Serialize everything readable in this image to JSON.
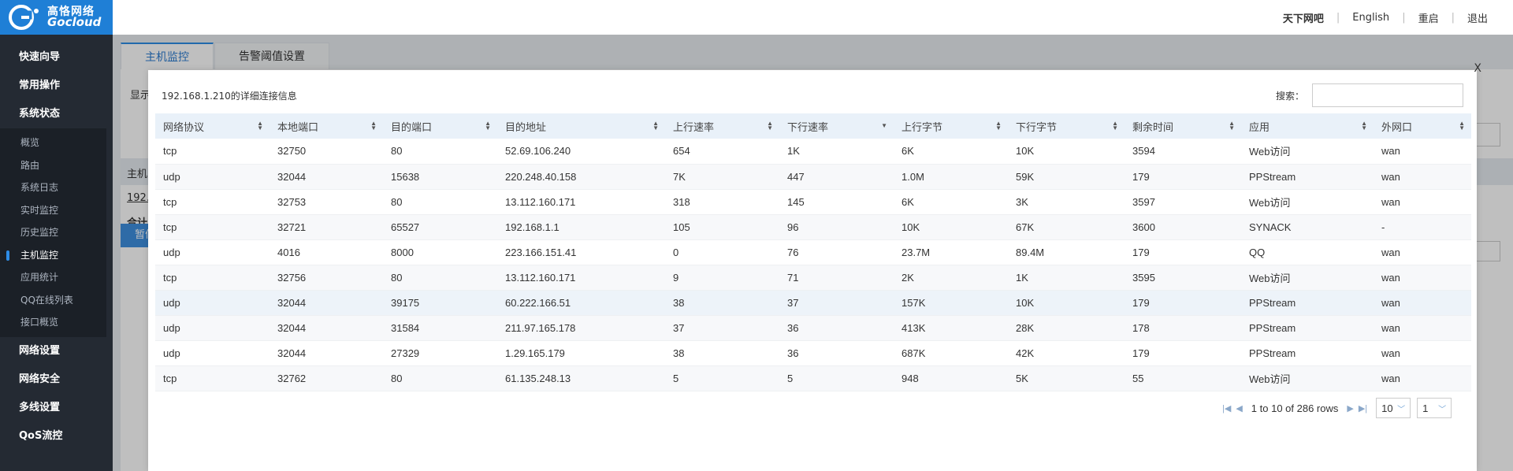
{
  "logo": {
    "cn": "高恪网络",
    "en": "Gocloud"
  },
  "topnav": {
    "site": "天下网吧",
    "lang": "English",
    "reboot": "重启",
    "logout": "退出"
  },
  "sidebar": {
    "top_items": [
      {
        "label": "快速向导"
      },
      {
        "label": "常用操作"
      },
      {
        "label": "系统状态"
      }
    ],
    "sub_items": [
      {
        "label": "概览"
      },
      {
        "label": "路由"
      },
      {
        "label": "系统日志"
      },
      {
        "label": "实时监控"
      },
      {
        "label": "历史监控"
      },
      {
        "label": "主机监控"
      },
      {
        "label": "应用统计"
      },
      {
        "label": "QQ在线列表"
      },
      {
        "label": "接口概览"
      }
    ],
    "bottom_items": [
      {
        "label": "网络设置"
      },
      {
        "label": "网络安全"
      },
      {
        "label": "多线设置"
      },
      {
        "label": "QoS流控"
      }
    ]
  },
  "tabs": [
    {
      "label": "主机监控"
    },
    {
      "label": "告警阈值设置"
    }
  ],
  "background": {
    "show_fragment": "显示",
    "host_fragment": "主机",
    "ip_fragment": "192.",
    "total_fragment": "合计",
    "btn_fragment": "暂停"
  },
  "modal": {
    "close": "X",
    "title": "192.168.1.210的详细连接信息",
    "search_label": "搜索：",
    "search_value": "",
    "columns": [
      "网络协议",
      "本地端口",
      "目的端口",
      "目的地址",
      "上行速率",
      "下行速率",
      "上行字节",
      "下行字节",
      "剩余时间",
      "应用",
      "外网口"
    ],
    "rows": [
      [
        "tcp",
        "32750",
        "80",
        "52.69.106.240",
        "654",
        "1K",
        "6K",
        "10K",
        "3594",
        "Web访问",
        "wan"
      ],
      [
        "udp",
        "32044",
        "15638",
        "220.248.40.158",
        "7K",
        "447",
        "1.0M",
        "59K",
        "179",
        "PPStream",
        "wan"
      ],
      [
        "tcp",
        "32753",
        "80",
        "13.112.160.171",
        "318",
        "145",
        "6K",
        "3K",
        "3597",
        "Web访问",
        "wan"
      ],
      [
        "tcp",
        "32721",
        "65527",
        "192.168.1.1",
        "105",
        "96",
        "10K",
        "67K",
        "3600",
        "SYNACK",
        "-"
      ],
      [
        "udp",
        "4016",
        "8000",
        "223.166.151.41",
        "0",
        "76",
        "23.7M",
        "89.4M",
        "179",
        "QQ",
        "wan"
      ],
      [
        "tcp",
        "32756",
        "80",
        "13.112.160.171",
        "9",
        "71",
        "2K",
        "1K",
        "3595",
        "Web访问",
        "wan"
      ],
      [
        "udp",
        "32044",
        "39175",
        "60.222.166.51",
        "38",
        "37",
        "157K",
        "10K",
        "179",
        "PPStream",
        "wan"
      ],
      [
        "udp",
        "32044",
        "31584",
        "211.97.165.178",
        "37",
        "36",
        "413K",
        "28K",
        "178",
        "PPStream",
        "wan"
      ],
      [
        "udp",
        "32044",
        "27329",
        "1.29.165.179",
        "38",
        "36",
        "687K",
        "42K",
        "179",
        "PPStream",
        "wan"
      ],
      [
        "tcp",
        "32762",
        "80",
        "61.135.248.13",
        "5",
        "5",
        "948",
        "5K",
        "55",
        "Web访问",
        "wan"
      ]
    ],
    "pager": {
      "summary": "1 to 10 of 286 rows",
      "page_size": "10",
      "page": "1"
    }
  }
}
